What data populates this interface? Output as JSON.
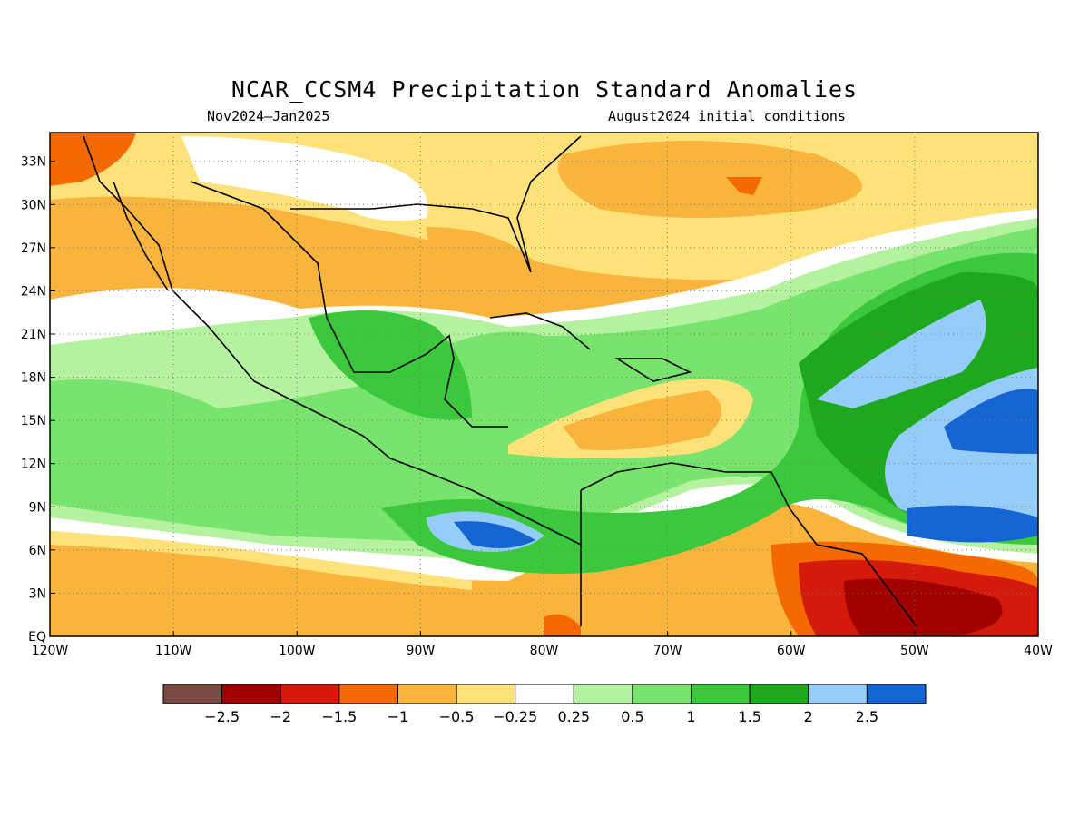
{
  "title": "NCAR_CCSM4 Precipitation Standard Anomalies",
  "subtitle_left": "Nov2024–Jan2025",
  "subtitle_right": "August2024 initial conditions",
  "map": {
    "lon_range": [
      -120,
      -40
    ],
    "lat_range": [
      0,
      35
    ],
    "x_ticks": [
      {
        "value": -120,
        "label": "120W"
      },
      {
        "value": -110,
        "label": "110W"
      },
      {
        "value": -100,
        "label": "100W"
      },
      {
        "value": -90,
        "label": "90W"
      },
      {
        "value": -80,
        "label": "80W"
      },
      {
        "value": -70,
        "label": "70W"
      },
      {
        "value": -60,
        "label": "60W"
      },
      {
        "value": -50,
        "label": "50W"
      },
      {
        "value": -40,
        "label": "40W"
      }
    ],
    "y_ticks": [
      {
        "value": 0,
        "label": "EQ"
      },
      {
        "value": 3,
        "label": "3N"
      },
      {
        "value": 6,
        "label": "6N"
      },
      {
        "value": 9,
        "label": "9N"
      },
      {
        "value": 12,
        "label": "12N"
      },
      {
        "value": 15,
        "label": "15N"
      },
      {
        "value": 18,
        "label": "18N"
      },
      {
        "value": 21,
        "label": "21N"
      },
      {
        "value": 24,
        "label": "24N"
      },
      {
        "value": 27,
        "label": "27N"
      },
      {
        "value": 30,
        "label": "30N"
      },
      {
        "value": 33,
        "label": "33N"
      }
    ],
    "grid": "dotted"
  },
  "colorbar": {
    "colors": [
      "#7a4b43",
      "#a00000",
      "#d41a0a",
      "#f56a00",
      "#f8b43c",
      "#fde27a",
      "#ffffff",
      "#b4f2a0",
      "#78e46e",
      "#3cc83c",
      "#1ea81e",
      "#96cdf8",
      "#1464d2"
    ],
    "labels": [
      "−2.5",
      "−2",
      "−1.5",
      "−1",
      "−0.5",
      "−0.25",
      "0.25",
      "0.5",
      "1",
      "1.5",
      "2",
      "2.5"
    ]
  }
}
